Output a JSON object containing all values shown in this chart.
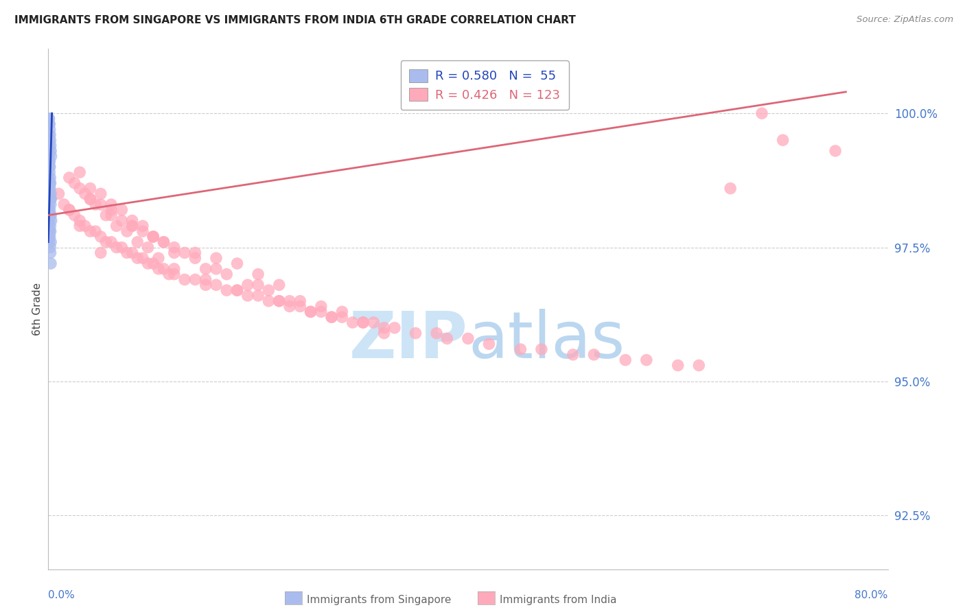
{
  "title": "IMMIGRANTS FROM SINGAPORE VS IMMIGRANTS FROM INDIA 6TH GRADE CORRELATION CHART",
  "source": "Source: ZipAtlas.com",
  "ylabel": "6th Grade",
  "yticks": [
    92.5,
    95.0,
    97.5,
    100.0
  ],
  "ytick_labels": [
    "92.5%",
    "95.0%",
    "97.5%",
    "100.0%"
  ],
  "xmin": 0.0,
  "xmax": 80.0,
  "ymin": 91.5,
  "ymax": 101.2,
  "singapore_color": "#aabbee",
  "india_color": "#ffaabb",
  "singapore_line_color": "#2244bb",
  "india_line_color": "#dd6677",
  "tick_label_color": "#4477cc",
  "background_color": "#ffffff",
  "grid_color": "#cccccc",
  "legend_R_singapore": "0.580",
  "legend_N_singapore": "55",
  "legend_R_india": "0.426",
  "legend_N_india": "123",
  "singapore_x": [
    0.05,
    0.08,
    0.1,
    0.12,
    0.15,
    0.18,
    0.2,
    0.22,
    0.25,
    0.28,
    0.05,
    0.07,
    0.09,
    0.11,
    0.14,
    0.16,
    0.19,
    0.21,
    0.24,
    0.26,
    0.06,
    0.08,
    0.11,
    0.13,
    0.16,
    0.18,
    0.21,
    0.23,
    0.26,
    0.29,
    0.04,
    0.06,
    0.08,
    0.1,
    0.12,
    0.15,
    0.17,
    0.2,
    0.22,
    0.25,
    0.03,
    0.05,
    0.07,
    0.09,
    0.11,
    0.14,
    0.16,
    0.19,
    0.21,
    0.24,
    0.02,
    0.04,
    0.06,
    0.08,
    0.1
  ],
  "singapore_y": [
    99.9,
    99.9,
    99.8,
    99.8,
    99.7,
    99.6,
    99.5,
    99.4,
    99.3,
    99.2,
    99.6,
    99.5,
    99.4,
    99.3,
    99.1,
    99.0,
    98.8,
    98.7,
    98.5,
    98.4,
    99.2,
    99.1,
    99.0,
    98.9,
    98.7,
    98.6,
    98.4,
    98.3,
    98.1,
    98.0,
    98.8,
    98.7,
    98.6,
    98.5,
    98.4,
    98.2,
    98.1,
    97.9,
    97.8,
    97.6,
    98.4,
    98.3,
    98.2,
    98.1,
    98.0,
    97.8,
    97.7,
    97.5,
    97.4,
    97.2,
    98.0,
    97.9,
    97.8,
    97.7,
    97.6
  ],
  "india_x": [
    1.0,
    1.5,
    2.0,
    2.5,
    3.0,
    3.5,
    4.0,
    4.5,
    5.0,
    5.5,
    6.0,
    6.5,
    7.0,
    7.5,
    8.0,
    8.5,
    9.0,
    9.5,
    10.0,
    10.5,
    11.0,
    11.5,
    12.0,
    13.0,
    14.0,
    15.0,
    16.0,
    17.0,
    18.0,
    19.0,
    20.0,
    21.0,
    22.0,
    23.0,
    24.0,
    25.0,
    26.0,
    27.0,
    28.0,
    29.0,
    30.0,
    32.0,
    33.0,
    35.0,
    37.0,
    38.0,
    40.0,
    42.0,
    45.0,
    47.0,
    50.0,
    52.0,
    55.0,
    57.0,
    60.0,
    62.0,
    65.0,
    68.0,
    70.0,
    75.0,
    2.0,
    3.0,
    4.0,
    5.0,
    6.0,
    7.0,
    8.0,
    9.0,
    10.0,
    11.0,
    12.0,
    14.0,
    16.0,
    18.0,
    20.0,
    22.0,
    3.5,
    4.5,
    5.5,
    6.5,
    7.5,
    8.5,
    9.5,
    10.5,
    12.0,
    15.0,
    18.0,
    22.0,
    25.0,
    30.0,
    2.5,
    4.0,
    6.0,
    8.0,
    10.0,
    13.0,
    16.0,
    20.0,
    24.0,
    28.0,
    3.0,
    5.0,
    7.0,
    9.0,
    11.0,
    14.0,
    17.0,
    21.0,
    26.0,
    31.0,
    4.0,
    6.0,
    8.0,
    10.0,
    12.0,
    15.0,
    19.0,
    23.0,
    27.0,
    32.0,
    2.0,
    3.0,
    5.0
  ],
  "india_y": [
    98.5,
    98.3,
    98.2,
    98.1,
    98.0,
    97.9,
    97.8,
    97.8,
    97.7,
    97.6,
    97.6,
    97.5,
    97.5,
    97.4,
    97.4,
    97.3,
    97.3,
    97.2,
    97.2,
    97.1,
    97.1,
    97.0,
    97.0,
    96.9,
    96.9,
    96.8,
    96.8,
    96.7,
    96.7,
    96.6,
    96.6,
    96.5,
    96.5,
    96.4,
    96.4,
    96.3,
    96.3,
    96.2,
    96.2,
    96.1,
    96.1,
    96.0,
    96.0,
    95.9,
    95.9,
    95.8,
    95.8,
    95.7,
    95.6,
    95.6,
    95.5,
    95.5,
    95.4,
    95.4,
    95.3,
    95.3,
    98.6,
    100.0,
    99.5,
    99.3,
    98.8,
    98.6,
    98.4,
    98.3,
    98.2,
    98.0,
    97.9,
    97.8,
    97.7,
    97.6,
    97.5,
    97.4,
    97.3,
    97.2,
    97.0,
    96.8,
    98.5,
    98.3,
    98.1,
    97.9,
    97.8,
    97.6,
    97.5,
    97.3,
    97.1,
    96.9,
    96.7,
    96.5,
    96.3,
    96.1,
    98.7,
    98.4,
    98.1,
    97.9,
    97.7,
    97.4,
    97.1,
    96.8,
    96.5,
    96.3,
    98.9,
    98.5,
    98.2,
    97.9,
    97.6,
    97.3,
    97.0,
    96.7,
    96.4,
    96.1,
    98.6,
    98.3,
    98.0,
    97.7,
    97.4,
    97.1,
    96.8,
    96.5,
    96.2,
    95.9,
    98.2,
    97.9,
    97.4
  ],
  "sg_trend_x": [
    0.0,
    0.35
  ],
  "sg_trend_y": [
    97.6,
    100.0
  ],
  "in_trend_x": [
    0.0,
    76.0
  ],
  "in_trend_y": [
    98.1,
    100.4
  ]
}
